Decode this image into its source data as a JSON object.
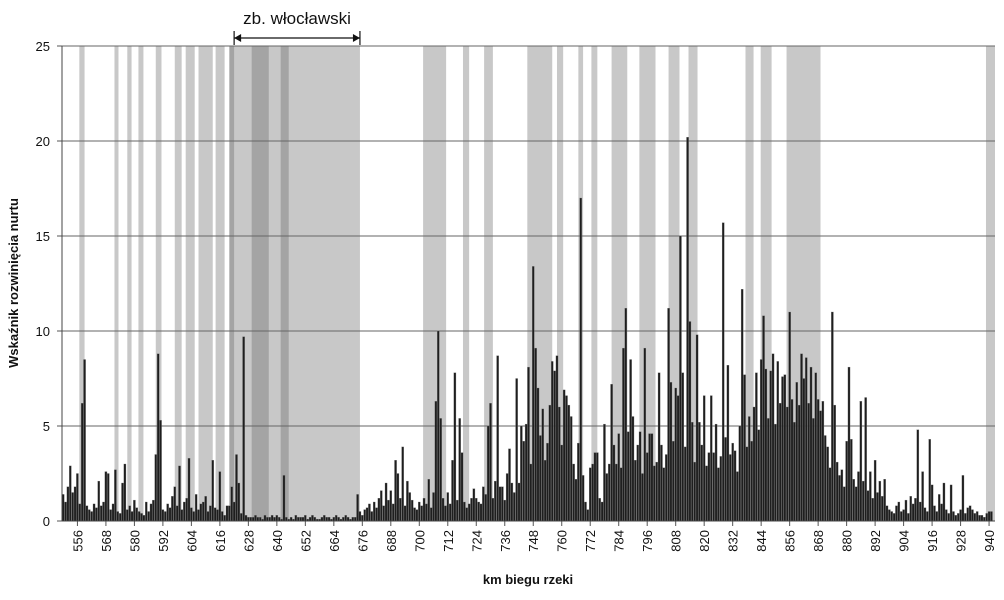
{
  "chart_data": {
    "type": "bar",
    "ylabel": "Wskaźnik rozwinięcia nurtu",
    "xlabel": "km biegu rzeki",
    "annotation": {
      "text": "zb. włocławski",
      "span": [
        622,
        675
      ]
    },
    "xlim": [
      549.5,
      942.5
    ],
    "ylim": [
      0,
      25
    ],
    "yticks": [
      0,
      5,
      10,
      15,
      20,
      25
    ],
    "xticks": [
      556,
      568,
      580,
      592,
      604,
      616,
      628,
      640,
      652,
      664,
      676,
      688,
      700,
      712,
      724,
      736,
      748,
      760,
      772,
      784,
      796,
      808,
      820,
      832,
      844,
      856,
      868,
      880,
      892,
      904,
      916,
      928,
      940
    ],
    "grid": true,
    "color": "#1e1e1e",
    "shaded_color": "#c8c8c8",
    "dark_color": "#a4a4a4",
    "shaded_ranges": [
      [
        556.8,
        559
      ],
      [
        571.6,
        573.3
      ],
      [
        577,
        578.8
      ],
      [
        581.7,
        583.8
      ],
      [
        589,
        591.4
      ],
      [
        597,
        599.9
      ],
      [
        601.6,
        605.4
      ],
      [
        607,
        613
      ],
      [
        614.2,
        618
      ],
      [
        620,
        675
      ],
      [
        701.6,
        711.3
      ],
      [
        718.4,
        721
      ],
      [
        727.3,
        731
      ],
      [
        745.5,
        756
      ],
      [
        758,
        760.6
      ],
      [
        767,
        769
      ],
      [
        772.5,
        775
      ],
      [
        781,
        787.6
      ],
      [
        792.7,
        799.5
      ],
      [
        805,
        809.6
      ],
      [
        813.4,
        817.2
      ],
      [
        837.4,
        840.8
      ],
      [
        843.8,
        848.4
      ],
      [
        854.7,
        869
      ],
      [
        938.7,
        942.5
      ]
    ],
    "dark_ranges": [
      [
        620,
        622
      ],
      [
        629.4,
        636.6
      ],
      [
        641.6,
        645
      ]
    ],
    "x": [
      550,
      551,
      552,
      553,
      554,
      555,
      556,
      557,
      558,
      559,
      560,
      561,
      562,
      563,
      564,
      565,
      566,
      567,
      568,
      569,
      570,
      571,
      572,
      573,
      574,
      575,
      576,
      577,
      578,
      579,
      580,
      581,
      582,
      583,
      584,
      585,
      586,
      587,
      588,
      589,
      590,
      591,
      592,
      593,
      594,
      595,
      596,
      597,
      598,
      599,
      600,
      601,
      602,
      603,
      604,
      605,
      606,
      607,
      608,
      609,
      610,
      611,
      612,
      613,
      614,
      615,
      616,
      617,
      618,
      619,
      620,
      621,
      622,
      623,
      624,
      625,
      626,
      627,
      628,
      629,
      630,
      631,
      632,
      633,
      634,
      635,
      636,
      637,
      638,
      639,
      640,
      641,
      642,
      643,
      644,
      645,
      646,
      647,
      648,
      649,
      650,
      651,
      652,
      653,
      654,
      655,
      656,
      657,
      658,
      659,
      660,
      661,
      662,
      663,
      664,
      665,
      666,
      667,
      668,
      669,
      670,
      671,
      672,
      673,
      674,
      675,
      676,
      677,
      678,
      679,
      680,
      681,
      682,
      683,
      684,
      685,
      686,
      687,
      688,
      689,
      690,
      691,
      692,
      693,
      694,
      695,
      696,
      697,
      698,
      699,
      700,
      701,
      702,
      703,
      704,
      705,
      706,
      707,
      708,
      709,
      710,
      711,
      712,
      713,
      714,
      715,
      716,
      717,
      718,
      719,
      720,
      721,
      722,
      723,
      724,
      725,
      726,
      727,
      728,
      729,
      730,
      731,
      732,
      733,
      734,
      735,
      736,
      737,
      738,
      739,
      740,
      741,
      742,
      743,
      744,
      745,
      746,
      747,
      748,
      749,
      750,
      751,
      752,
      753,
      754,
      755,
      756,
      757,
      758,
      759,
      760,
      761,
      762,
      763,
      764,
      765,
      766,
      767,
      768,
      769,
      770,
      771,
      772,
      773,
      774,
      775,
      776,
      777,
      778,
      779,
      780,
      781,
      782,
      783,
      784,
      785,
      786,
      787,
      788,
      789,
      790,
      791,
      792,
      793,
      794,
      795,
      796,
      797,
      798,
      799,
      800,
      801,
      802,
      803,
      804,
      805,
      806,
      807,
      808,
      809,
      810,
      811,
      812,
      813,
      814,
      815,
      816,
      817,
      818,
      819,
      820,
      821,
      822,
      823,
      824,
      825,
      826,
      827,
      828,
      829,
      830,
      831,
      832,
      833,
      834,
      835,
      836,
      837,
      838,
      839,
      840,
      841,
      842,
      843,
      844,
      845,
      846,
      847,
      848,
      849,
      850,
      851,
      852,
      853,
      854,
      855,
      856,
      857,
      858,
      859,
      860,
      861,
      862,
      863,
      864,
      865,
      866,
      867,
      868,
      869,
      870,
      871,
      872,
      873,
      874,
      875,
      876,
      877,
      878,
      879,
      880,
      881,
      882,
      883,
      884,
      885,
      886,
      887,
      888,
      889,
      890,
      891,
      892,
      893,
      894,
      895,
      896,
      897,
      898,
      899,
      900,
      901,
      902,
      903,
      904,
      905,
      906,
      907,
      908,
      909,
      910,
      911,
      912,
      913,
      914,
      915,
      916,
      917,
      918,
      919,
      920,
      921,
      922,
      923,
      924,
      925,
      926,
      927,
      928,
      929,
      930,
      931,
      932,
      933,
      934,
      935,
      936,
      937,
      938,
      939,
      940,
      941
    ],
    "values": [
      1.4,
      1.0,
      1.8,
      2.9,
      1.5,
      1.8,
      2.5,
      0.9,
      6.2,
      8.5,
      0.8,
      0.6,
      0.5,
      0.9,
      0.7,
      2.1,
      0.8,
      1.0,
      2.6,
      2.5,
      0.6,
      0.9,
      2.7,
      0.5,
      0.4,
      2.0,
      3.0,
      0.6,
      0.8,
      0.5,
      1.1,
      0.7,
      0.5,
      0.4,
      0.3,
      1.0,
      0.5,
      0.9,
      1.1,
      3.5,
      8.8,
      5.3,
      0.6,
      0.5,
      0.9,
      0.7,
      1.3,
      1.8,
      0.8,
      2.9,
      0.6,
      1.0,
      1.2,
      3.3,
      0.7,
      0.5,
      1.4,
      0.6,
      0.9,
      1.0,
      1.3,
      0.5,
      0.8,
      3.2,
      0.7,
      0.6,
      2.6,
      0.5,
      0.3,
      0.8,
      0.8,
      1.8,
      1.0,
      3.5,
      2.0,
      0.4,
      9.7,
      0.3,
      0.2,
      0.2,
      0.2,
      0.3,
      0.2,
      0.2,
      0.1,
      0.3,
      0.2,
      0.2,
      0.3,
      0.2,
      0.3,
      0.2,
      0.1,
      2.4,
      0.2,
      0.1,
      0.2,
      0.1,
      0.3,
      0.2,
      0.2,
      0.2,
      0.3,
      0.1,
      0.2,
      0.3,
      0.2,
      0.1,
      0.1,
      0.2,
      0.3,
      0.2,
      0.2,
      0.1,
      0.2,
      0.3,
      0.2,
      0.1,
      0.2,
      0.3,
      0.2,
      0.1,
      0.2,
      0.2,
      1.4,
      0.5,
      0.3,
      0.6,
      0.7,
      0.9,
      0.5,
      1.0,
      0.7,
      1.2,
      1.6,
      0.8,
      2.0,
      1.1,
      1.6,
      0.9,
      3.2,
      2.5,
      1.2,
      3.9,
      0.8,
      2.1,
      1.5,
      1.1,
      0.7,
      0.6,
      1.0,
      0.8,
      1.2,
      0.9,
      2.2,
      0.7,
      1.5,
      6.3,
      10.0,
      5.4,
      1.2,
      0.8,
      1.5,
      0.9,
      3.2,
      7.8,
      1.1,
      5.4,
      3.6,
      1.0,
      0.7,
      0.9,
      1.2,
      1.7,
      1.2,
      1.0,
      0.9,
      1.8,
      1.4,
      5.0,
      6.2,
      1.2,
      2.1,
      8.7,
      1.8,
      1.8,
      1.1,
      2.5,
      3.8,
      2.0,
      1.5,
      7.5,
      2.0,
      5.0,
      4.2,
      5.1,
      8.1,
      3.0,
      13.4,
      9.1,
      7.0,
      4.5,
      5.9,
      3.2,
      4.1,
      6.1,
      8.4,
      7.9,
      8.7,
      6.0,
      4.0,
      6.9,
      6.6,
      6.1,
      5.5,
      3.0,
      2.2,
      4.1,
      17.0,
      2.4,
      1.0,
      0.6,
      2.8,
      3.0,
      3.6,
      3.6,
      1.2,
      1.0,
      5.1,
      2.5,
      3.0,
      7.2,
      4.0,
      3.0,
      4.6,
      2.8,
      9.1,
      11.2,
      4.7,
      8.5,
      5.5,
      3.2,
      4.0,
      4.7,
      2.5,
      9.1,
      3.6,
      4.6,
      4.6,
      2.9,
      3.1,
      7.8,
      4.0,
      2.8,
      3.5,
      11.2,
      7.3,
      4.2,
      7.0,
      6.6,
      15.0,
      7.8,
      3.9,
      20.2,
      10.5,
      5.2,
      3.1,
      9.8,
      5.2,
      4.0,
      6.6,
      2.9,
      3.6,
      6.6,
      3.6,
      5.1,
      2.8,
      3.4,
      15.7,
      4.4,
      8.2,
      3.5,
      4.1,
      3.7,
      2.6,
      5.0,
      12.2,
      7.7,
      3.9,
      5.5,
      4.2,
      6.0,
      7.8,
      4.8,
      8.5,
      10.8,
      8.0,
      5.4,
      7.9,
      8.8,
      5.1,
      8.4,
      6.2,
      7.6,
      7.7,
      6.0,
      11.0,
      6.4,
      5.2,
      7.3,
      6.1,
      8.8,
      7.5,
      8.6,
      6.2,
      8.1,
      5.4,
      7.8,
      6.4,
      5.8,
      6.3,
      4.5,
      3.9,
      2.8,
      11.0,
      6.1,
      3.1,
      2.4,
      2.7,
      1.8,
      4.2,
      8.1,
      4.3,
      2.2,
      1.8,
      2.6,
      6.3,
      2.1,
      6.5,
      1.6,
      2.6,
      1.2,
      3.2,
      1.5,
      2.1,
      1.3,
      2.2,
      0.8,
      0.6,
      0.5,
      0.4,
      0.8,
      1.0,
      0.5,
      0.6,
      1.1,
      0.4,
      1.3,
      0.9,
      1.2,
      4.8,
      1.0,
      2.6,
      0.7,
      0.5,
      4.3,
      1.9,
      0.8,
      0.5,
      1.4,
      0.9,
      2.0,
      0.6,
      0.4,
      1.9,
      0.5,
      0.3,
      0.4,
      0.6,
      2.4,
      0.4,
      0.7,
      0.8,
      0.6,
      0.4,
      0.5,
      0.3,
      0.3,
      0.2,
      0.4,
      0.5,
      0.5
    ]
  }
}
